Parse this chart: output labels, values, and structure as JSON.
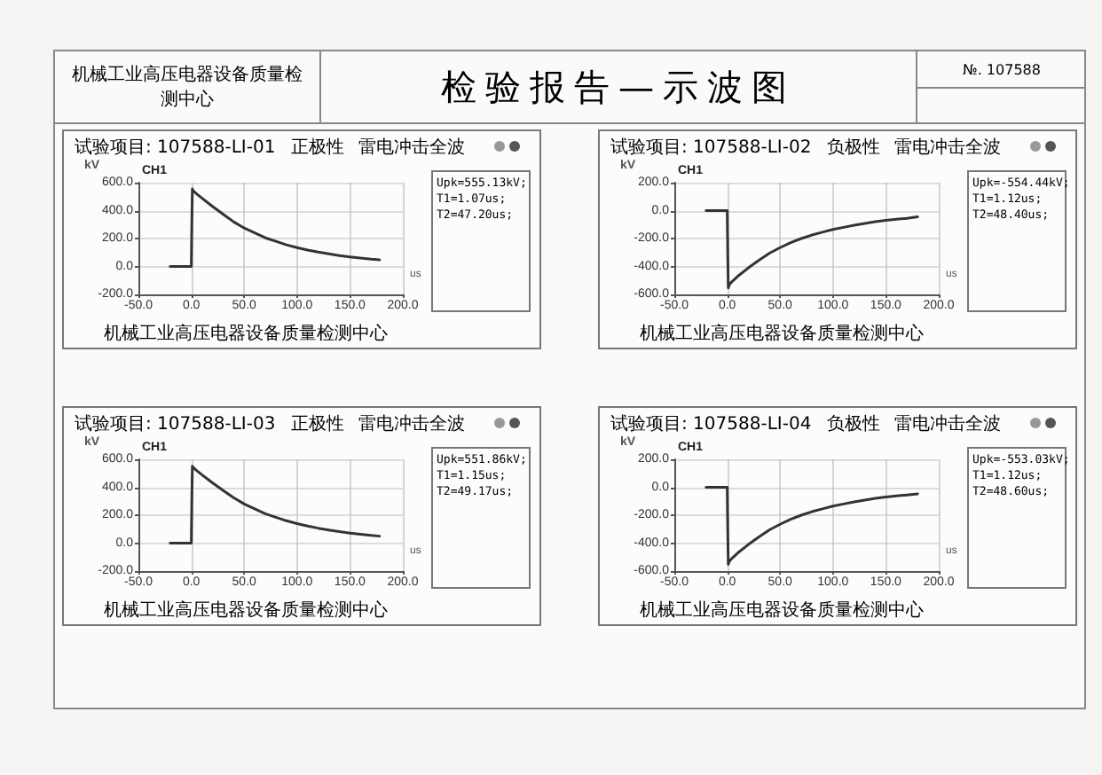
{
  "chart_data": [
    {
      "type": "other",
      "title": "检验报告—示波图",
      "annotations": [
        "机械工业高压电器设备质量检测中心",
        "№. 107588"
      ]
    },
    {
      "type": "line",
      "title": "试验项目:  107588-LI-01",
      "xlabel": "us",
      "ylabel": "kV",
      "color": "#333333",
      "marker": "none",
      "grid": true,
      "annotations": [
        "正极性",
        "雷电冲击全波",
        "CH1",
        "Upk=555.13kV;",
        "T1=1.07us;",
        "T2=47.20us;",
        "机械工业高压电器设备质量检测中心"
      ],
      "x": [
        -20,
        -10,
        0,
        0.5,
        1,
        2,
        5,
        10,
        20,
        30,
        40,
        50,
        60,
        70,
        80,
        90,
        100,
        110,
        120,
        130,
        140,
        150,
        160,
        170,
        178
      ],
      "values": [
        0,
        0,
        0,
        300,
        555,
        540,
        520,
        490,
        430,
        375,
        320,
        275,
        240,
        205,
        180,
        155,
        135,
        118,
        103,
        90,
        78,
        68,
        60,
        52,
        47
      ],
      "xlim": [
        -50,
        200
      ],
      "xticks": [
        {
          "value": -50,
          "label": "-50.0"
        },
        {
          "value": 0,
          "label": "0.0"
        },
        {
          "value": 50,
          "label": "50.0"
        },
        {
          "value": 100,
          "label": "100.0"
        },
        {
          "value": 150,
          "label": "150.0"
        },
        {
          "value": 200,
          "label": "200.0"
        }
      ],
      "ylim": [
        -200,
        600
      ],
      "yticks": [
        {
          "value": -200,
          "label": "-200.0"
        },
        {
          "value": 0,
          "label": "0.0"
        },
        {
          "value": 200,
          "label": "200.0"
        },
        {
          "value": 400,
          "label": "400.0"
        },
        {
          "value": 600,
          "label": "600.0"
        }
      ]
    },
    {
      "type": "line",
      "title": "试验项目:  107588-LI-02",
      "xlabel": "us",
      "ylabel": "kV",
      "color": "#333333",
      "marker": "none",
      "grid": true,
      "annotations": [
        "负极性",
        "雷电冲击全波",
        "CH1",
        "Upk=-554.44kV;",
        "T1=1.12us;",
        "T2=48.40us;",
        "机械工业高压电器设备质量检测中心"
      ],
      "x": [
        -20,
        -10,
        0,
        0.5,
        1,
        2,
        5,
        10,
        20,
        30,
        40,
        50,
        60,
        70,
        80,
        90,
        100,
        110,
        120,
        130,
        140,
        150,
        160,
        170,
        180
      ],
      "values": [
        0,
        0,
        0,
        -300,
        -554,
        -530,
        -505,
        -470,
        -410,
        -355,
        -305,
        -265,
        -230,
        -200,
        -175,
        -155,
        -135,
        -120,
        -105,
        -92,
        -80,
        -70,
        -62,
        -55,
        -45
      ],
      "xlim": [
        -50,
        200
      ],
      "xticks": [
        {
          "value": -50,
          "label": "-50.0"
        },
        {
          "value": 0,
          "label": "0.0"
        },
        {
          "value": 50,
          "label": "50.0"
        },
        {
          "value": 100,
          "label": "100.0"
        },
        {
          "value": 150,
          "label": "150.0"
        },
        {
          "value": 200,
          "label": "200.0"
        }
      ],
      "ylim": [
        -600,
        200
      ],
      "yticks": [
        {
          "value": -600,
          "label": "-600.0"
        },
        {
          "value": -400,
          "label": "-400.0"
        },
        {
          "value": -200,
          "label": "-200.0"
        },
        {
          "value": 0,
          "label": "0.0"
        },
        {
          "value": 200,
          "label": "200.0"
        }
      ]
    },
    {
      "type": "line",
      "title": "试验项目:  107588-LI-03",
      "xlabel": "us",
      "ylabel": "kV",
      "color": "#333333",
      "marker": "none",
      "grid": true,
      "annotations": [
        "正极性",
        "雷电冲击全波",
        "CH1",
        "Upk=551.86kV;",
        "T1=1.15us;",
        "T2=49.17us;",
        "机械工业高压电器设备质量检测中心"
      ],
      "x": [
        -20,
        -10,
        0,
        0.5,
        1,
        2,
        5,
        10,
        20,
        30,
        40,
        50,
        60,
        70,
        80,
        90,
        100,
        110,
        120,
        130,
        140,
        150,
        160,
        170,
        178
      ],
      "values": [
        0,
        0,
        0,
        300,
        551,
        540,
        520,
        490,
        432,
        378,
        325,
        280,
        245,
        210,
        185,
        160,
        140,
        122,
        107,
        94,
        82,
        72,
        63,
        55,
        50
      ],
      "xlim": [
        -50,
        200
      ],
      "xticks": [
        {
          "value": -50,
          "label": "-50.0"
        },
        {
          "value": 0,
          "label": "0.0"
        },
        {
          "value": 50,
          "label": "50.0"
        },
        {
          "value": 100,
          "label": "100.0"
        },
        {
          "value": 150,
          "label": "150.0"
        },
        {
          "value": 200,
          "label": "200.0"
        }
      ],
      "ylim": [
        -200,
        600
      ],
      "yticks": [
        {
          "value": -200,
          "label": "-200.0"
        },
        {
          "value": 0,
          "label": "0.0"
        },
        {
          "value": 200,
          "label": "200.0"
        },
        {
          "value": 400,
          "label": "400.0"
        },
        {
          "value": 600,
          "label": "600.0"
        }
      ]
    },
    {
      "type": "line",
      "title": "试验项目:  107588-LI-04",
      "xlabel": "us",
      "ylabel": "kV",
      "color": "#333333",
      "marker": "none",
      "grid": true,
      "annotations": [
        "负极性",
        "雷电冲击全波",
        "CH1",
        "Upk=-553.03kV;",
        "T1=1.12us;",
        "T2=48.60us;",
        "机械工业高压电器设备质量检测中心"
      ],
      "x": [
        -20,
        -10,
        0,
        0.5,
        1,
        2,
        5,
        10,
        20,
        30,
        40,
        50,
        60,
        70,
        80,
        90,
        100,
        110,
        120,
        130,
        140,
        150,
        160,
        170,
        180
      ],
      "values": [
        0,
        0,
        0,
        -300,
        -553,
        -530,
        -505,
        -470,
        -410,
        -355,
        -305,
        -265,
        -230,
        -200,
        -175,
        -155,
        -135,
        -120,
        -105,
        -92,
        -80,
        -70,
        -62,
        -55,
        -47
      ],
      "xlim": [
        -50,
        200
      ],
      "xticks": [
        {
          "value": -50,
          "label": "-50.0"
        },
        {
          "value": 0,
          "label": "0.0"
        },
        {
          "value": 50,
          "label": "50.0"
        },
        {
          "value": 100,
          "label": "100.0"
        },
        {
          "value": 150,
          "label": "150.0"
        },
        {
          "value": 200,
          "label": "200.0"
        }
      ],
      "ylim": [
        -600,
        200
      ],
      "yticks": [
        {
          "value": -600,
          "label": "-600.0"
        },
        {
          "value": -400,
          "label": "-400.0"
        },
        {
          "value": -200,
          "label": "-200.0"
        },
        {
          "value": 0,
          "label": "0.0"
        },
        {
          "value": 200,
          "label": "200.0"
        }
      ]
    }
  ]
}
